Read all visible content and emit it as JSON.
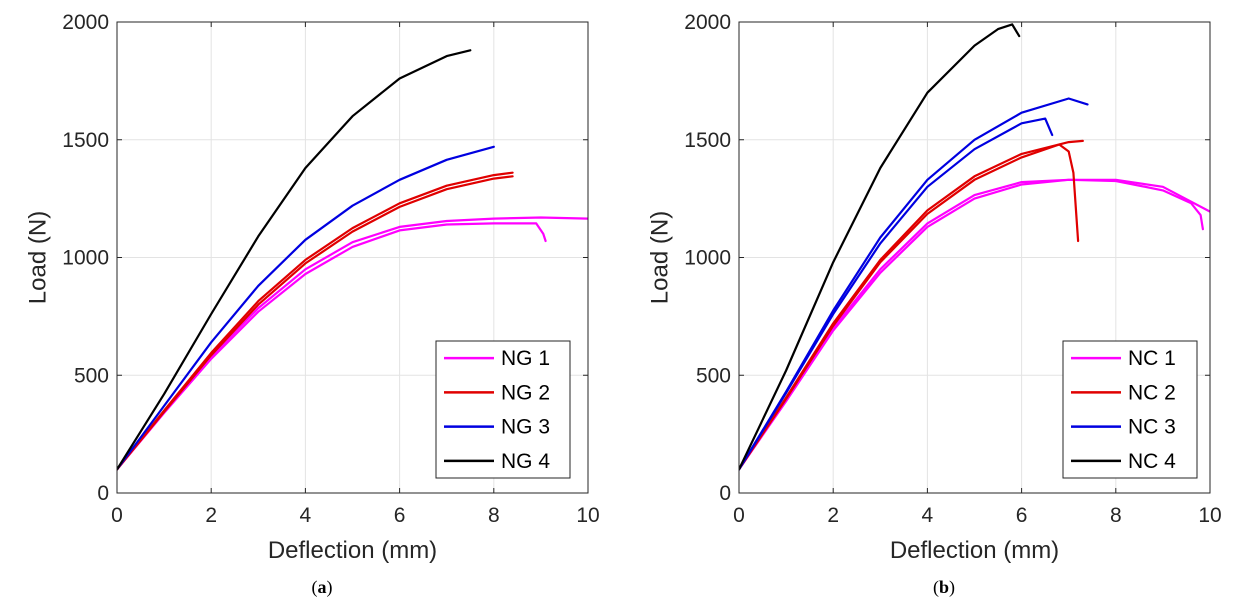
{
  "chart_data": [
    {
      "type": "line",
      "caption_open": "(",
      "caption_letter": "a",
      "caption_close": ")",
      "title": "",
      "xlabel": "Deflection (mm)",
      "ylabel": "Load (N)",
      "xlim": [
        0,
        10
      ],
      "ylim": [
        0,
        2000
      ],
      "xticks": [
        "0",
        "2",
        "4",
        "6",
        "8",
        "10"
      ],
      "yticks": [
        "0",
        "500",
        "1000",
        "1500",
        "2000"
      ],
      "grid": true,
      "legend_position": "bottom-right",
      "series": [
        {
          "name": "NG 1",
          "color": "#ff00ff",
          "curves": [
            [
              [
                0,
                100
              ],
              [
                1,
                340
              ],
              [
                2,
                570
              ],
              [
                3,
                770
              ],
              [
                4,
                930
              ],
              [
                5,
                1045
              ],
              [
                6,
                1115
              ],
              [
                7,
                1140
              ],
              [
                8,
                1145
              ],
              [
                8.9,
                1145
              ],
              [
                9.05,
                1100
              ],
              [
                9.1,
                1070
              ]
            ],
            [
              [
                0,
                100
              ],
              [
                1,
                345
              ],
              [
                2,
                580
              ],
              [
                3,
                785
              ],
              [
                4,
                950
              ],
              [
                5,
                1065
              ],
              [
                6,
                1130
              ],
              [
                7,
                1155
              ],
              [
                8,
                1165
              ],
              [
                9,
                1170
              ],
              [
                10,
                1165
              ]
            ]
          ]
        },
        {
          "name": "NG 2",
          "color": "#e00000",
          "curves": [
            [
              [
                0,
                100
              ],
              [
                1,
                345
              ],
              [
                2,
                585
              ],
              [
                3,
                800
              ],
              [
                4,
                975
              ],
              [
                5,
                1110
              ],
              [
                6,
                1215
              ],
              [
                7,
                1290
              ],
              [
                8,
                1335
              ],
              [
                8.4,
                1345
              ]
            ],
            [
              [
                0,
                100
              ],
              [
                1,
                350
              ],
              [
                2,
                595
              ],
              [
                3,
                815
              ],
              [
                4,
                990
              ],
              [
                5,
                1125
              ],
              [
                6,
                1230
              ],
              [
                7,
                1305
              ],
              [
                8,
                1350
              ],
              [
                8.4,
                1360
              ]
            ]
          ]
        },
        {
          "name": "NG 3",
          "color": "#0000e0",
          "curves": [
            [
              [
                0,
                100
              ],
              [
                1,
                370
              ],
              [
                2,
                640
              ],
              [
                3,
                880
              ],
              [
                4,
                1075
              ],
              [
                5,
                1220
              ],
              [
                6,
                1330
              ],
              [
                7,
                1415
              ],
              [
                8,
                1470
              ]
            ]
          ]
        },
        {
          "name": "NG 4",
          "color": "#000000",
          "curves": [
            [
              [
                0,
                100
              ],
              [
                1,
                420
              ],
              [
                2,
                760
              ],
              [
                3,
                1090
              ],
              [
                4,
                1380
              ],
              [
                5,
                1600
              ],
              [
                6,
                1760
              ],
              [
                7,
                1855
              ],
              [
                7.5,
                1880
              ]
            ]
          ]
        }
      ]
    },
    {
      "type": "line",
      "caption_open": "(",
      "caption_letter": "b",
      "caption_close": ")",
      "title": "",
      "xlabel": "Deflection (mm)",
      "ylabel": "Load (N)",
      "xlim": [
        0,
        10
      ],
      "ylim": [
        0,
        2000
      ],
      "xticks": [
        "0",
        "2",
        "4",
        "6",
        "8",
        "10"
      ],
      "yticks": [
        "0",
        "500",
        "1000",
        "1500",
        "2000"
      ],
      "grid": true,
      "legend_position": "bottom-right",
      "series": [
        {
          "name": "NC 1",
          "color": "#ff00ff",
          "curves": [
            [
              [
                0,
                100
              ],
              [
                1,
                390
              ],
              [
                2,
                690
              ],
              [
                3,
                935
              ],
              [
                4,
                1130
              ],
              [
                5,
                1250
              ],
              [
                6,
                1310
              ],
              [
                7,
                1330
              ],
              [
                8,
                1325
              ],
              [
                9,
                1285
              ],
              [
                9.6,
                1230
              ],
              [
                9.8,
                1180
              ],
              [
                9.85,
                1120
              ]
            ],
            [
              [
                0,
                100
              ],
              [
                1,
                395
              ],
              [
                2,
                700
              ],
              [
                3,
                950
              ],
              [
                4,
                1145
              ],
              [
                5,
                1265
              ],
              [
                6,
                1320
              ],
              [
                7,
                1330
              ],
              [
                8,
                1330
              ],
              [
                9,
                1300
              ],
              [
                10,
                1195
              ]
            ]
          ]
        },
        {
          "name": "NC 2",
          "color": "#e00000",
          "curves": [
            [
              [
                0,
                100
              ],
              [
                1,
                400
              ],
              [
                2,
                710
              ],
              [
                3,
                980
              ],
              [
                4,
                1185
              ],
              [
                5,
                1330
              ],
              [
                6,
                1425
              ],
              [
                6.8,
                1480
              ],
              [
                7.0,
                1450
              ],
              [
                7.1,
                1360
              ],
              [
                7.2,
                1070
              ]
            ],
            [
              [
                0,
                100
              ],
              [
                1,
                405
              ],
              [
                2,
                720
              ],
              [
                3,
                990
              ],
              [
                4,
                1200
              ],
              [
                5,
                1345
              ],
              [
                6,
                1440
              ],
              [
                7,
                1490
              ],
              [
                7.3,
                1495
              ]
            ]
          ]
        },
        {
          "name": "NC 3",
          "color": "#0000e0",
          "curves": [
            [
              [
                0,
                100
              ],
              [
                1,
                425
              ],
              [
                2,
                760
              ],
              [
                3,
                1060
              ],
              [
                4,
                1300
              ],
              [
                5,
                1460
              ],
              [
                6,
                1570
              ],
              [
                6.5,
                1590
              ],
              [
                6.65,
                1520
              ]
            ],
            [
              [
                0,
                100
              ],
              [
                1,
                430
              ],
              [
                2,
                775
              ],
              [
                3,
                1085
              ],
              [
                4,
                1330
              ],
              [
                5,
                1500
              ],
              [
                6,
                1615
              ],
              [
                7,
                1675
              ],
              [
                7.4,
                1650
              ]
            ]
          ]
        },
        {
          "name": "NC 4",
          "color": "#000000",
          "curves": [
            [
              [
                0,
                100
              ],
              [
                1,
                520
              ],
              [
                2,
                980
              ],
              [
                3,
                1380
              ],
              [
                4,
                1700
              ],
              [
                5,
                1900
              ],
              [
                5.5,
                1970
              ],
              [
                5.8,
                1990
              ],
              [
                5.95,
                1940
              ]
            ]
          ]
        }
      ]
    }
  ]
}
